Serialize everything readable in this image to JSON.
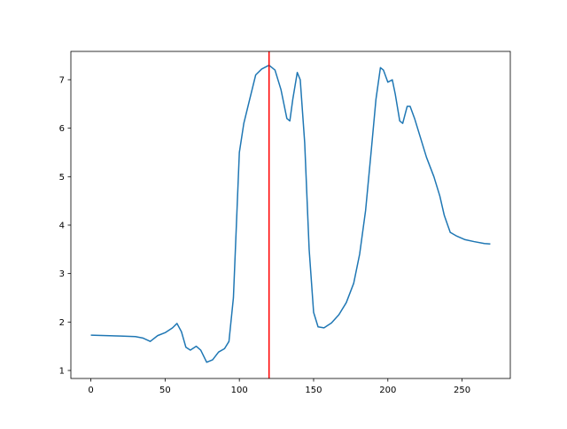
{
  "chart_data": {
    "type": "line",
    "x": [
      0,
      10,
      20,
      30,
      35,
      40,
      45,
      50,
      55,
      58,
      61,
      64,
      67,
      71,
      74,
      78,
      82,
      86,
      90,
      93,
      96,
      98,
      100,
      103,
      107,
      111,
      115,
      120,
      124,
      128,
      132,
      134,
      136,
      139,
      141,
      144,
      147,
      150,
      153,
      157,
      162,
      167,
      172,
      177,
      181,
      185,
      189,
      192,
      195,
      197,
      200,
      203,
      205,
      208,
      210,
      213,
      215,
      218,
      222,
      226,
      231,
      235,
      238,
      242,
      246,
      252,
      258,
      265,
      269
    ],
    "series": [
      {
        "color": "#1f77b4",
        "values": [
          1.73,
          1.72,
          1.71,
          1.7,
          1.67,
          1.6,
          1.72,
          1.78,
          1.88,
          1.97,
          1.8,
          1.48,
          1.42,
          1.5,
          1.42,
          1.17,
          1.22,
          1.38,
          1.45,
          1.6,
          2.5,
          4.0,
          5.5,
          6.1,
          6.6,
          7.1,
          7.22,
          7.3,
          7.2,
          6.8,
          6.2,
          6.15,
          6.6,
          7.15,
          7.0,
          5.7,
          3.5,
          2.2,
          1.9,
          1.88,
          1.98,
          2.15,
          2.4,
          2.8,
          3.4,
          4.3,
          5.6,
          6.6,
          7.25,
          7.2,
          6.95,
          7.0,
          6.7,
          6.15,
          6.1,
          6.45,
          6.45,
          6.2,
          5.8,
          5.4,
          5.0,
          4.6,
          4.2,
          3.85,
          3.78,
          3.7,
          3.66,
          3.62,
          3.61
        ]
      }
    ],
    "vline": 120,
    "vline_color": "#ff0000",
    "xlim": [
      -13.45,
      282.45
    ],
    "xticks": [
      0,
      50,
      100,
      150,
      200,
      250
    ],
    "ylim": [
      0.835,
      7.585
    ],
    "yticks": [
      1,
      2,
      3,
      4,
      5,
      6,
      7
    ]
  }
}
